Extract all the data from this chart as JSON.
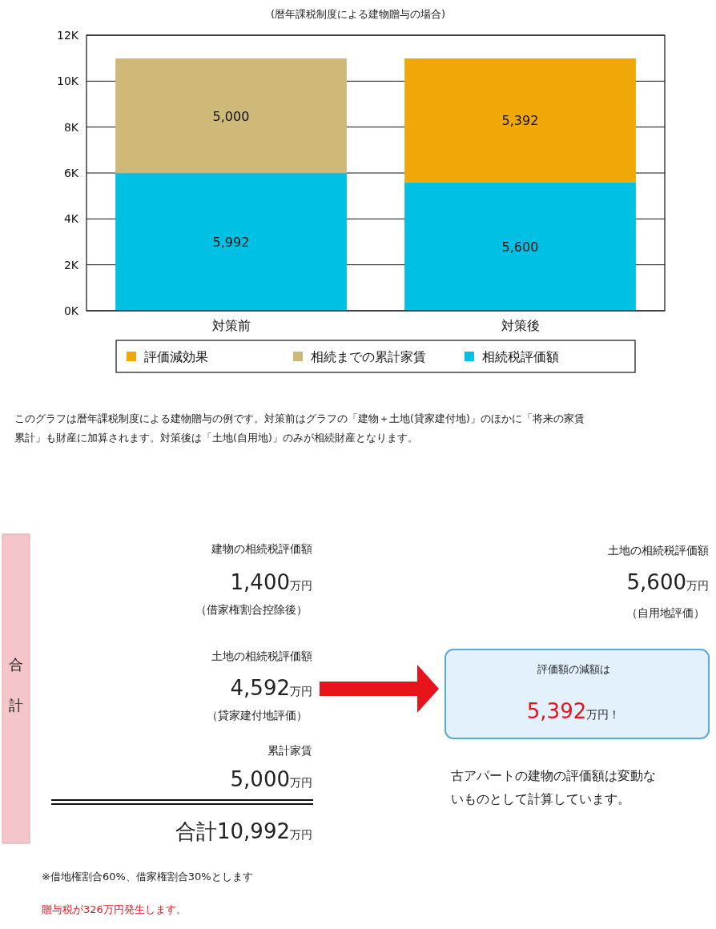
{
  "chart_data": {
    "type": "bar",
    "stacked": true,
    "title": "(暦年課税制度による建物贈与の場合)",
    "categories": [
      "対策前",
      "対策後"
    ],
    "series": [
      {
        "name": "相続税評価額",
        "color": "#00c0e3",
        "values": [
          5992,
          5600
        ],
        "value_labels": [
          "5,992",
          "5,600"
        ]
      },
      {
        "name": "相続までの累計家賃",
        "color": "#cfb978",
        "values": [
          5000,
          null
        ],
        "value_labels": [
          "5,000",
          null
        ]
      },
      {
        "name": "評価減効果",
        "color": "#f0a808",
        "values": [
          null,
          5392
        ],
        "value_labels": [
          null,
          "5,392"
        ]
      }
    ],
    "ylim": [
      0,
      12000
    ],
    "yticks": [
      {
        "value": 0,
        "label": "0K"
      },
      {
        "value": 2000,
        "label": "2K"
      },
      {
        "value": 4000,
        "label": "4K"
      },
      {
        "value": 6000,
        "label": "6K"
      },
      {
        "value": 8000,
        "label": "8K"
      },
      {
        "value": 10000,
        "label": "10K"
      },
      {
        "value": 12000,
        "label": "12K"
      }
    ],
    "grid": "y",
    "legend": "bottom",
    "annotations": [
      "このグラフは暦年課税制度による建物贈与の例です。対策前はグラフの「建物＋土地(貸家建付地)」のほかに「将来の家賃累計」も財産に加算されます。対策後は「土地(自用地)」のみが相続財産となります。",
      "合計",
      "建物の相続税評価額",
      "1,400万円",
      "（借家権割合控除後）",
      "土地の相続税評価額",
      "4,592万円",
      "（貸家建付地評価）",
      "累計家賃",
      "5,000万円",
      "合計10,992万円",
      "土地の相続税評価額",
      "5,600万円",
      "（自用地評価）",
      "評価額の減額は",
      "5,392万円！",
      "古アパートの建物の評価額は変動ないものとして計算しています。",
      "※借地権割合60%、借家権割合30%とします",
      "贈与税が326万円発生します。"
    ]
  }
}
